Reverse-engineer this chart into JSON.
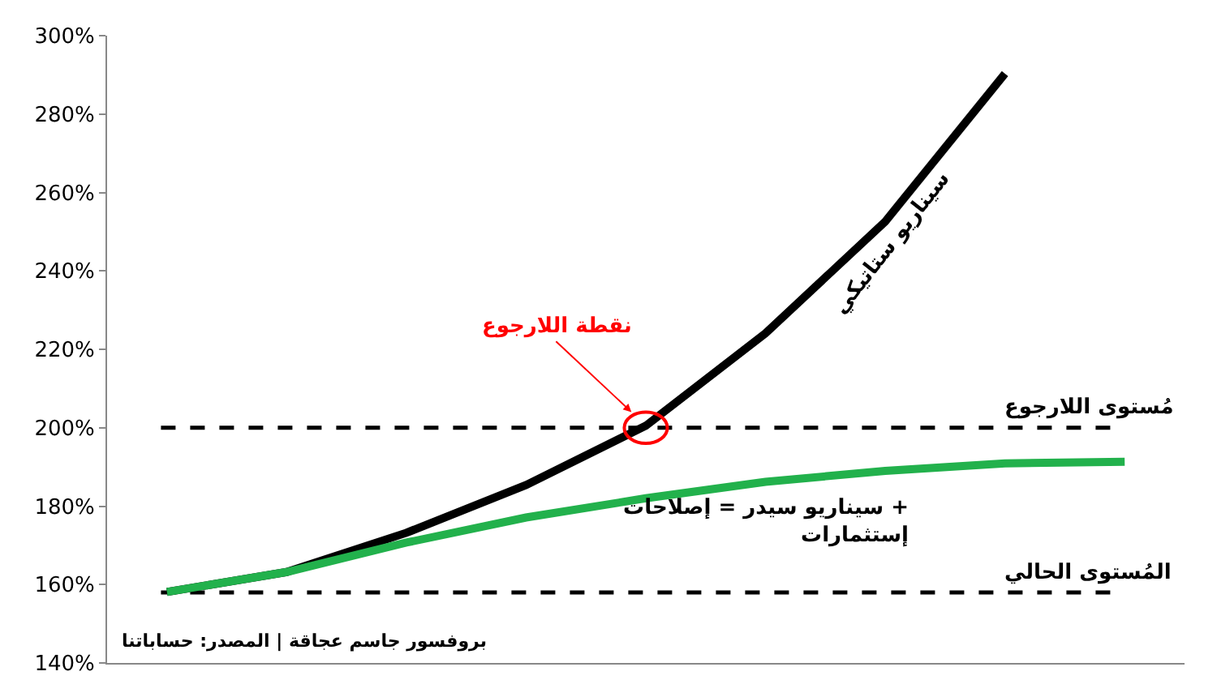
{
  "chart_data": {
    "type": "line",
    "categories": [
      null,
      null,
      null,
      null,
      null,
      null,
      null,
      null,
      null
    ],
    "series": [
      {
        "name": "سيناريو ستاتيكي",
        "color": "#000000",
        "values": [
          158.1,
          163.2,
          173.2,
          185.4,
          200.5,
          224.1,
          252.6,
          290.3,
          null
        ]
      },
      {
        "name": "سيناريو سيدر = إصلاحات + إستثمارات",
        "color": "#22b14c",
        "values": [
          158.1,
          163.2,
          170.7,
          177.1,
          182,
          186.2,
          189,
          190.9,
          191.3
        ]
      }
    ],
    "ylim": [
      140,
      300
    ],
    "yticks": [
      {
        "value": 140,
        "label": "140%"
      },
      {
        "value": 160,
        "label": "160%"
      },
      {
        "value": 180,
        "label": "180%"
      },
      {
        "value": 200,
        "label": "200%"
      },
      {
        "value": 220,
        "label": "220%"
      },
      {
        "value": 240,
        "label": "240%"
      },
      {
        "value": 260,
        "label": "260%"
      },
      {
        "value": 280,
        "label": "280%"
      },
      {
        "value": 300,
        "label": "300%"
      }
    ],
    "ref_lines": [
      {
        "axis": "y",
        "value": 200,
        "label": "مُستوى اللارجوع",
        "color": "#000000",
        "line_style": "dashed"
      },
      {
        "axis": "y",
        "value": 158,
        "label": "المُستوى الحالي",
        "color": "#000000",
        "line_style": "dashed"
      }
    ],
    "annotations": [
      "نقطة اللارجوع",
      "بروفسور جاسم عجاقة | المصدر: حساباتنا"
    ],
    "tick_labels": "y",
    "grid": false,
    "legend": false,
    "marker": "none",
    "line_style": "solid"
  }
}
